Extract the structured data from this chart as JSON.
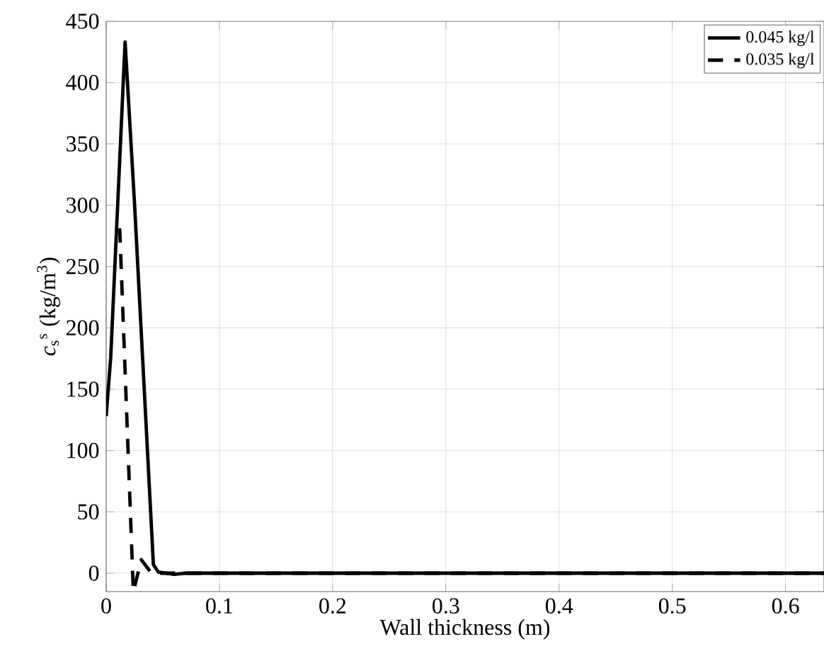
{
  "chart_data": {
    "type": "line",
    "xlabel": "Wall thickness (m)",
    "ylabel": "*c*$_{s}$$^{s}$ (kg/m$^{3}$)",
    "xlim": [
      0,
      0.634
    ],
    "ylim": [
      -15,
      450
    ],
    "xticks": [
      0,
      0.1,
      0.2,
      0.3,
      0.4,
      0.5,
      0.6
    ],
    "yticks": [
      0,
      50,
      100,
      150,
      200,
      250,
      300,
      350,
      400,
      450
    ],
    "grid": true,
    "legend": "top right",
    "series": [
      {
        "name": "0.045 kg/l",
        "color": "#000000",
        "line_style": "solid",
        "x": [
          0,
          0.004,
          0.0167,
          0.025,
          0.0417,
          0.046,
          0.06,
          0.07,
          0.1,
          0.2,
          0.3,
          0.4,
          0.5,
          0.6,
          0.634
        ],
        "values": [
          128,
          176,
          433,
          302,
          7,
          1,
          -1,
          0,
          0,
          0,
          0,
          0,
          0,
          0,
          0
        ]
      },
      {
        "name": "0.035 kg/l",
        "color": "#000000",
        "line_style": "dashed",
        "x": [
          0.0104,
          0.012,
          0.024,
          0.031,
          0.04,
          0.05,
          0.1,
          0.2,
          0.3,
          0.4,
          0.5,
          0.6,
          0.634
        ],
        "values": [
          279,
          280,
          -15,
          11,
          0,
          0,
          0,
          0,
          0,
          0,
          0,
          0,
          0
        ]
      }
    ]
  }
}
